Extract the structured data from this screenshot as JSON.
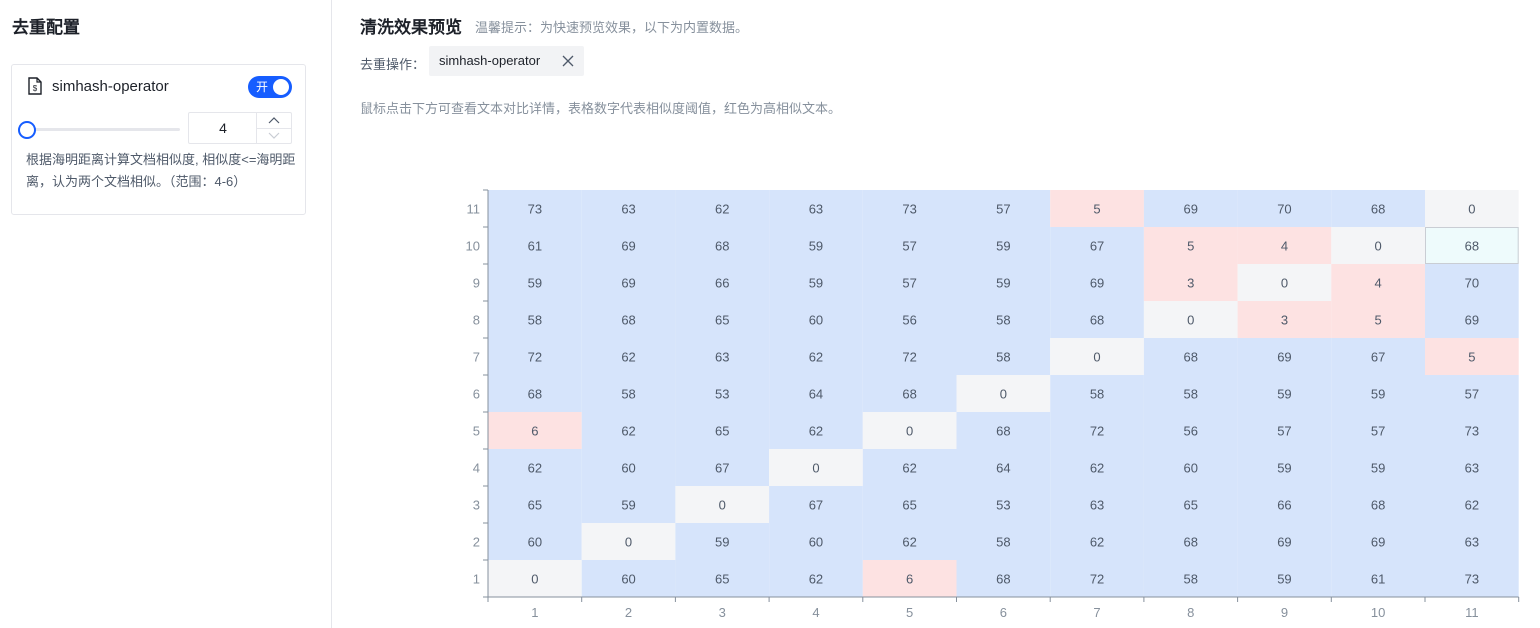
{
  "sidebar": {
    "title": "去重配置",
    "operator": {
      "name": "simhash-operator",
      "doc_icon": "document-icon",
      "toggle_label": "开",
      "toggle_on": true,
      "threshold_value": "4",
      "threshold_slider_fraction": 0.0,
      "description": "根据海明距离计算文档相似度, 相似度<=海明距离，认为两个文档相似。（范围：4-6）"
    }
  },
  "main": {
    "title": "清洗效果预览",
    "hint": "温馨提示：为快速预览效果，以下为内置数据。",
    "op_label": "去重操作：",
    "tag_label": "simhash-operator",
    "tag_close_icon": "close-icon",
    "instructions": "鼠标点击下方可查看文本对比详情，表格数字代表相似度阈值，红色为高相似文本。"
  },
  "colors": {
    "low_similarity": "#d6e4fb",
    "high_similarity": "#fde2e2",
    "diagonal": "#f4f5f7",
    "highlight": "#eefbfc",
    "accent": "#165dff"
  },
  "chart_data": {
    "type": "heatmap",
    "title": "",
    "xlabel": "",
    "ylabel": "",
    "x": [
      1,
      2,
      3,
      4,
      5,
      6,
      7,
      8,
      9,
      10,
      11
    ],
    "y": [
      1,
      2,
      3,
      4,
      5,
      6,
      7,
      8,
      9,
      10,
      11
    ],
    "x_tick_labels": [
      "1",
      "2",
      "3",
      "4",
      "5",
      "6",
      "7",
      "8",
      "9",
      "10",
      "11"
    ],
    "y_tick_labels": [
      "1",
      "2",
      "3",
      "4",
      "5",
      "6",
      "7",
      "8",
      "9",
      "10",
      "11"
    ],
    "threshold": 4,
    "highlighted_cell": {
      "x": 11,
      "y": 10
    },
    "rows_top_to_bottom": [
      {
        "y": 11,
        "values": [
          73,
          63,
          62,
          63,
          73,
          57,
          5,
          69,
          70,
          68,
          0
        ]
      },
      {
        "y": 10,
        "values": [
          61,
          69,
          68,
          59,
          57,
          59,
          67,
          5,
          4,
          0,
          68
        ]
      },
      {
        "y": 9,
        "values": [
          59,
          69,
          66,
          59,
          57,
          59,
          69,
          3,
          0,
          4,
          70
        ]
      },
      {
        "y": 8,
        "values": [
          58,
          68,
          65,
          60,
          56,
          58,
          68,
          0,
          3,
          5,
          69
        ]
      },
      {
        "y": 7,
        "values": [
          72,
          62,
          63,
          62,
          72,
          58,
          0,
          68,
          69,
          67,
          5
        ]
      },
      {
        "y": 6,
        "values": [
          68,
          58,
          53,
          64,
          68,
          0,
          58,
          58,
          59,
          59,
          57
        ]
      },
      {
        "y": 5,
        "values": [
          6,
          62,
          65,
          62,
          0,
          68,
          72,
          56,
          57,
          57,
          73
        ]
      },
      {
        "y": 4,
        "values": [
          62,
          60,
          67,
          0,
          62,
          64,
          62,
          60,
          59,
          59,
          63
        ]
      },
      {
        "y": 3,
        "values": [
          65,
          59,
          0,
          67,
          65,
          53,
          63,
          65,
          66,
          68,
          62
        ]
      },
      {
        "y": 2,
        "values": [
          60,
          0,
          59,
          60,
          62,
          58,
          62,
          68,
          69,
          69,
          63
        ]
      },
      {
        "y": 1,
        "values": [
          0,
          60,
          65,
          62,
          6,
          68,
          72,
          58,
          59,
          61,
          73
        ]
      }
    ]
  }
}
